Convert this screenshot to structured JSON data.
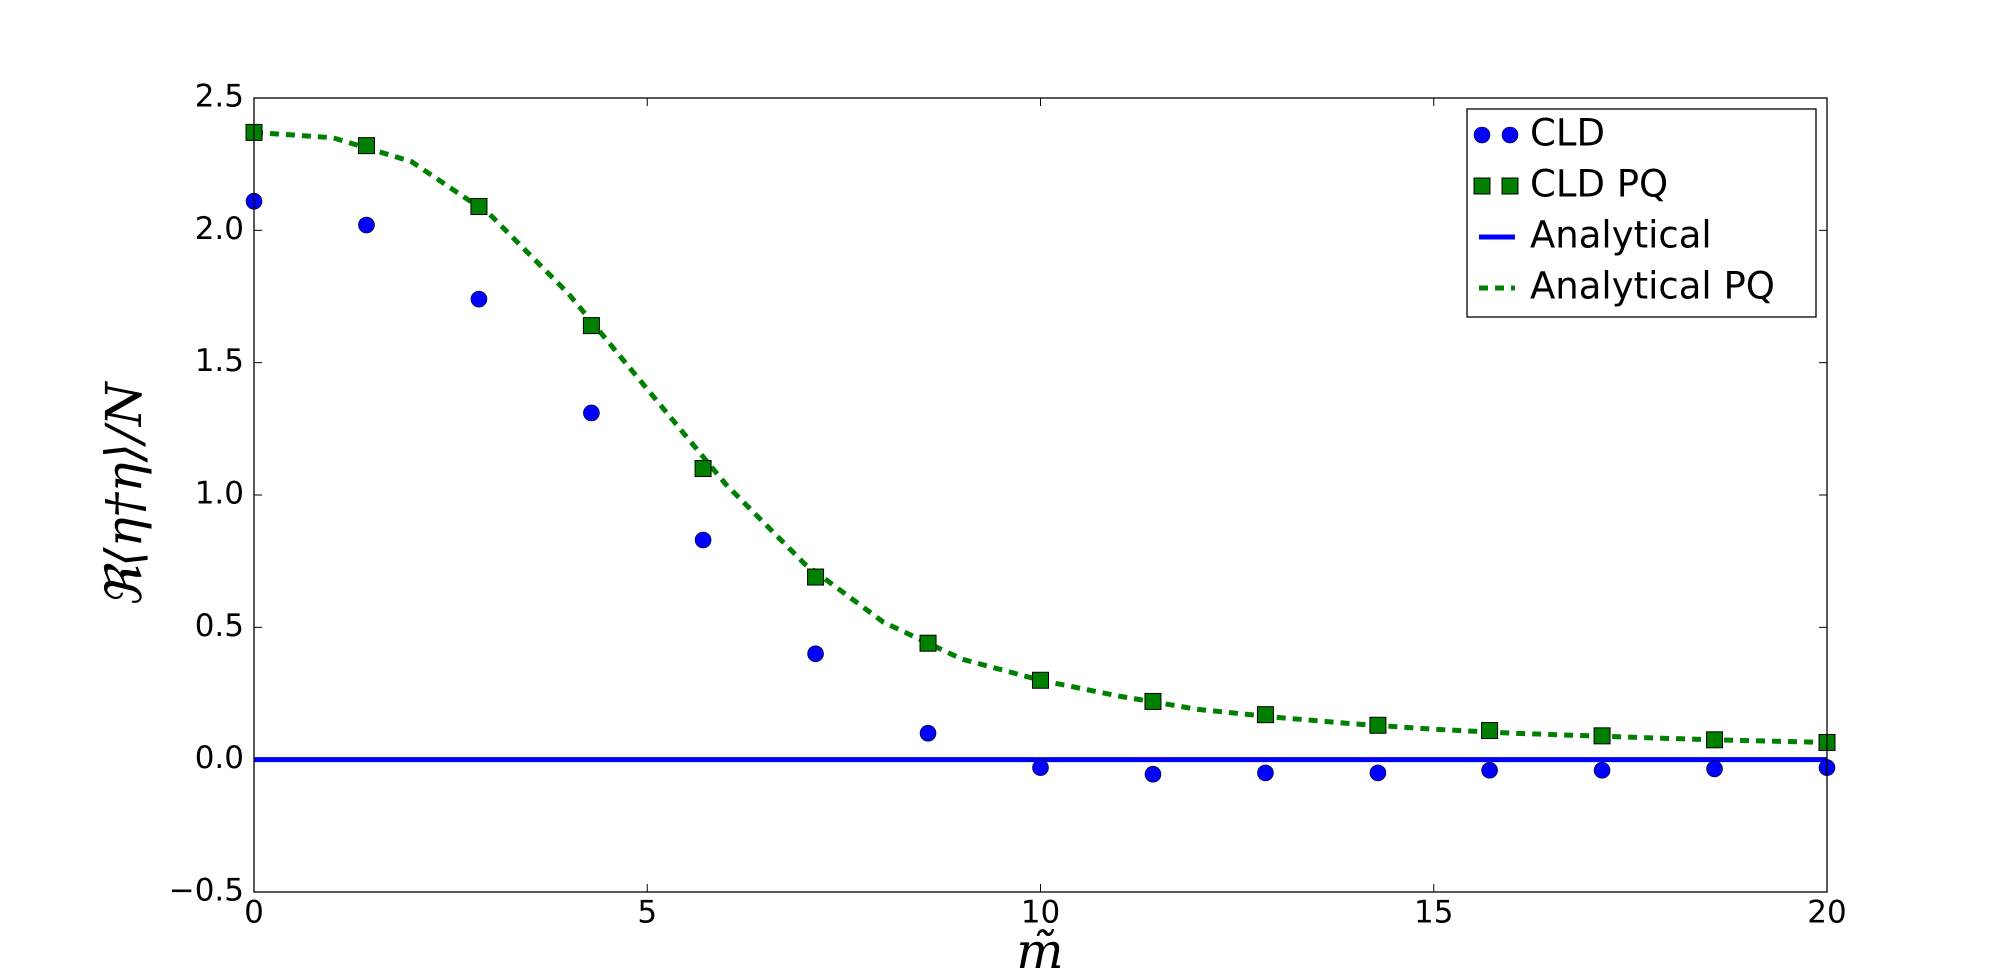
{
  "chart_data": {
    "type": "line",
    "xlabel": "m̃",
    "ylabel": "ℜ⟨η†η⟩/N",
    "xlim": [
      0,
      20
    ],
    "ylim": [
      -0.5,
      2.5
    ],
    "xticks": [
      0,
      5,
      10,
      15,
      20
    ],
    "yticks": [
      {
        "value": -0.5,
        "label": "−0.5"
      },
      {
        "value": 0,
        "label": "0.0"
      },
      0.5,
      {
        "value": 1,
        "label": "1.0"
      },
      1.5,
      {
        "value": 2,
        "label": "2.0"
      },
      2.5
    ],
    "legend": "upper right",
    "series": [
      {
        "name": "CLD",
        "color": "#0000ff",
        "style": "marker",
        "marker": "circle",
        "x": [
          0,
          1.43,
          2.86,
          4.29,
          5.71,
          7.14,
          8.57,
          10,
          11.43,
          12.86,
          14.29,
          15.71,
          17.14,
          18.57,
          20
        ],
        "values": [
          2.11,
          2.02,
          1.74,
          1.31,
          0.83,
          0.4,
          0.1,
          -0.03,
          -0.055,
          -0.05,
          -0.05,
          -0.04,
          -0.04,
          -0.035,
          -0.03
        ]
      },
      {
        "name": "CLD PQ",
        "color": "#008000",
        "style": "marker",
        "marker": "square",
        "x": [
          0,
          1.43,
          2.86,
          4.29,
          5.71,
          7.14,
          8.57,
          10,
          11.43,
          12.86,
          14.29,
          15.71,
          17.14,
          18.57,
          20
        ],
        "values": [
          2.37,
          2.32,
          2.09,
          1.64,
          1.1,
          0.69,
          0.44,
          0.3,
          0.22,
          0.17,
          0.13,
          0.11,
          0.09,
          0.075,
          0.065
        ]
      },
      {
        "name": "Analytical",
        "color": "#0000ff",
        "style": "solid",
        "x": [
          0,
          20
        ],
        "values": [
          0,
          0
        ]
      },
      {
        "name": "Analytical PQ",
        "color": "#008000",
        "style": "dashed",
        "x": [
          0,
          1,
          2,
          3,
          4,
          5,
          6,
          7,
          8,
          9,
          10,
          11,
          12,
          13,
          14,
          15,
          16,
          17,
          18,
          19,
          20
        ],
        "values": [
          2.37,
          2.35,
          2.26,
          2.06,
          1.76,
          1.4,
          1.04,
          0.74,
          0.52,
          0.38,
          0.3,
          0.24,
          0.19,
          0.16,
          0.135,
          0.115,
          0.1,
          0.09,
          0.08,
          0.072,
          0.065
        ]
      }
    ]
  }
}
